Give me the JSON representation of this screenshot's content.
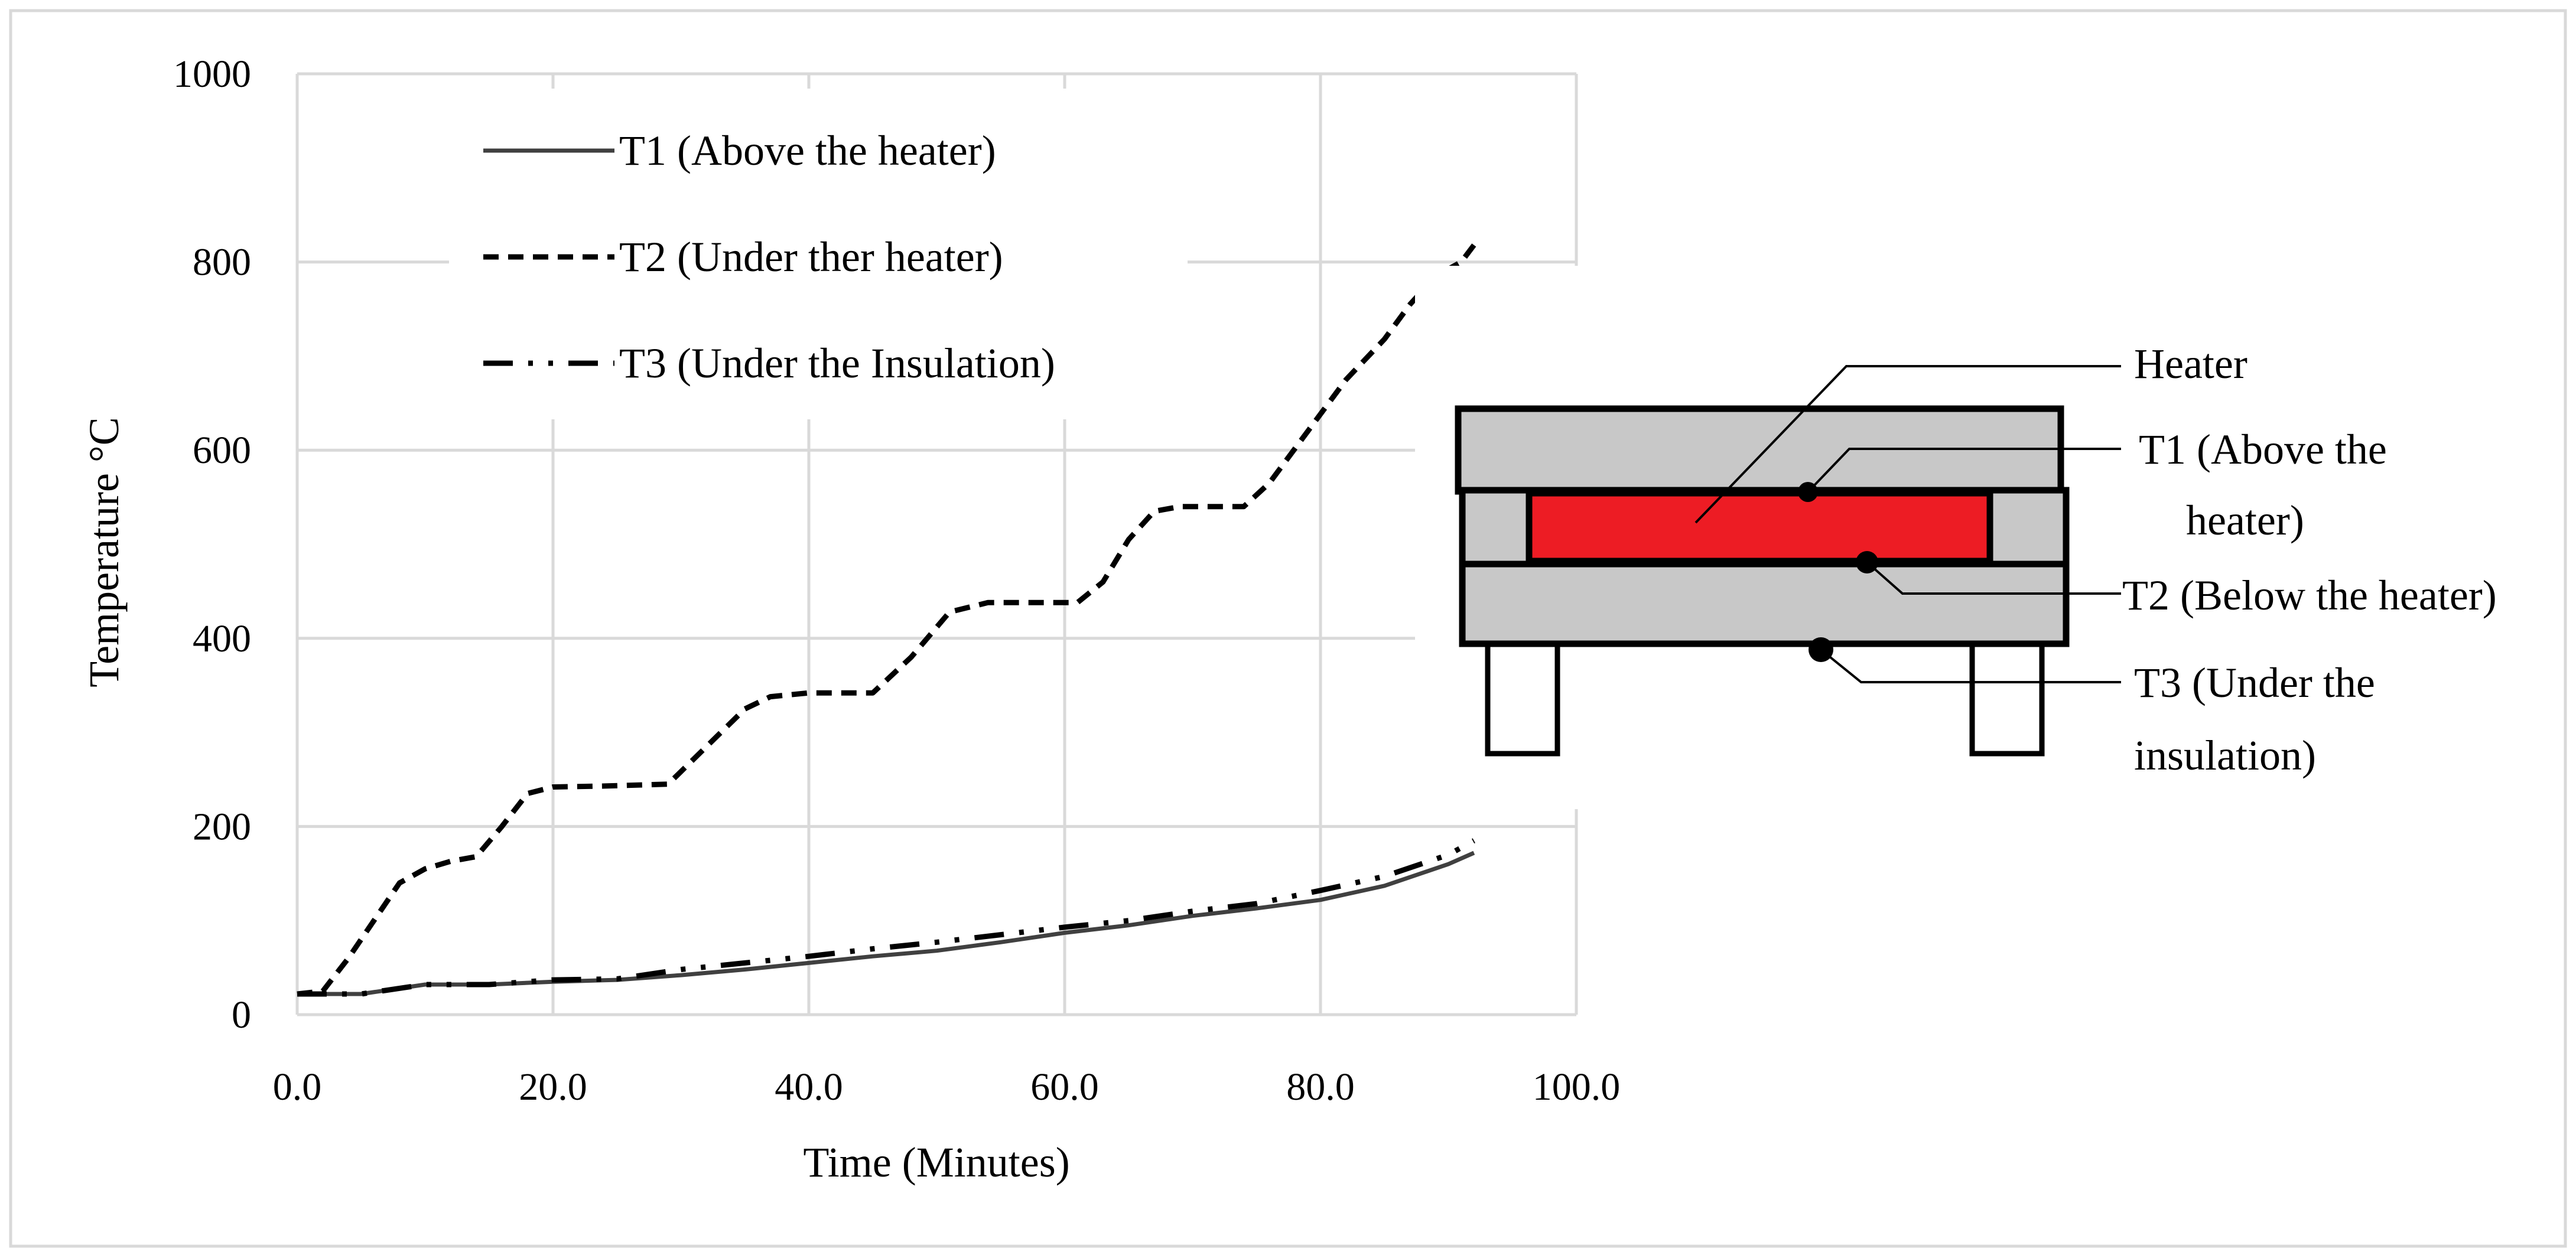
{
  "chart_data": {
    "type": "line",
    "xlabel": "Time (Minutes)",
    "ylabel": "Temperature °C",
    "xlim": [
      0,
      100
    ],
    "ylim": [
      0,
      1000
    ],
    "x_ticks": [
      "0.0",
      "20.0",
      "40.0",
      "60.0",
      "80.0",
      "100.0"
    ],
    "y_ticks": [
      "0",
      "200",
      "400",
      "600",
      "800",
      "1000"
    ],
    "grid": true,
    "legend_position": "top-left",
    "series": [
      {
        "name": "T1 (Above the heater)",
        "style": "solid",
        "color": "#404040",
        "points": [
          [
            0,
            22
          ],
          [
            5,
            22
          ],
          [
            10,
            32
          ],
          [
            15,
            32
          ],
          [
            20,
            35
          ],
          [
            25,
            37
          ],
          [
            30,
            42
          ],
          [
            35,
            48
          ],
          [
            40,
            55
          ],
          [
            45,
            62
          ],
          [
            50,
            68
          ],
          [
            55,
            77
          ],
          [
            60,
            87
          ],
          [
            65,
            95
          ],
          [
            70,
            105
          ],
          [
            75,
            113
          ],
          [
            80,
            122
          ],
          [
            85,
            137
          ],
          [
            90,
            160
          ],
          [
            92,
            172
          ]
        ]
      },
      {
        "name": "T2 (Under ther heater)",
        "style": "dashed",
        "color": "#000000",
        "points": [
          [
            0,
            22
          ],
          [
            2,
            25
          ],
          [
            4,
            60
          ],
          [
            6,
            100
          ],
          [
            8,
            140
          ],
          [
            10,
            155
          ],
          [
            12,
            163
          ],
          [
            14,
            168
          ],
          [
            16,
            200
          ],
          [
            18,
            235
          ],
          [
            20,
            242
          ],
          [
            24,
            243
          ],
          [
            29,
            245
          ],
          [
            32,
            285
          ],
          [
            35,
            325
          ],
          [
            37,
            338
          ],
          [
            40,
            342
          ],
          [
            45,
            342
          ],
          [
            48,
            380
          ],
          [
            51,
            428
          ],
          [
            54,
            438
          ],
          [
            58,
            438
          ],
          [
            61,
            438
          ],
          [
            63,
            460
          ],
          [
            65,
            505
          ],
          [
            67,
            535
          ],
          [
            69,
            540
          ],
          [
            74,
            540
          ],
          [
            76,
            565
          ],
          [
            79,
            620
          ],
          [
            82,
            675
          ],
          [
            85,
            718
          ],
          [
            87,
            755
          ],
          [
            89,
            785
          ],
          [
            91,
            800
          ],
          [
            92,
            818
          ]
        ]
      },
      {
        "name": "T3 (Under the Insulation)",
        "style": "dash-dot-dot",
        "color": "#000000",
        "points": [
          [
            0,
            22
          ],
          [
            5,
            22
          ],
          [
            10,
            32
          ],
          [
            15,
            32
          ],
          [
            20,
            37
          ],
          [
            25,
            38
          ],
          [
            30,
            48
          ],
          [
            35,
            55
          ],
          [
            40,
            62
          ],
          [
            45,
            70
          ],
          [
            50,
            77
          ],
          [
            55,
            85
          ],
          [
            60,
            93
          ],
          [
            65,
            100
          ],
          [
            70,
            110
          ],
          [
            75,
            118
          ],
          [
            80,
            132
          ],
          [
            85,
            147
          ],
          [
            90,
            170
          ],
          [
            92,
            185
          ]
        ]
      }
    ]
  },
  "inset_diagram": {
    "labels": {
      "heater": "Heater",
      "t1_line1": "T1 (Above the",
      "t1_line2": "heater)",
      "t2": "T2 (Below the heater)",
      "t3_line1": "T3 (Under the",
      "t3_line2": "insulation)"
    },
    "colors": {
      "plate": "#c8c8c8",
      "heater": "#ed1c24",
      "outline": "#000000",
      "probe": "#000000"
    }
  }
}
